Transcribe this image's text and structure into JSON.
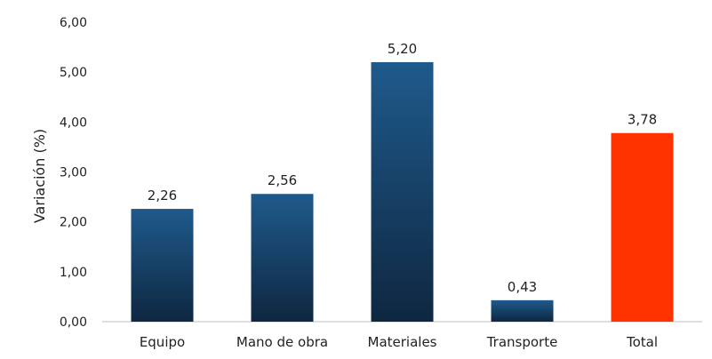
{
  "chart_data": {
    "type": "bar",
    "categories": [
      "Equipo",
      "Mano de obra",
      "Materiales",
      "Transporte",
      "Total"
    ],
    "values": [
      2.26,
      2.56,
      5.2,
      0.43,
      3.78
    ],
    "data_labels": [
      "2,26",
      "2,56",
      "5,20",
      "0,43",
      "3,78"
    ],
    "ylabel": "Variación (%)",
    "xlabel": "",
    "ylim": [
      0,
      6
    ],
    "yticks": [
      0,
      1,
      2,
      3,
      4,
      5,
      6
    ],
    "ytick_labels": [
      "0,00",
      "1,00",
      "2,00",
      "3,00",
      "4,00",
      "5,00",
      "6,00"
    ],
    "grid": false,
    "legend": "none",
    "colors": {
      "bar_gradient_top": "#1f5a8c",
      "bar_gradient_bottom": "#0e2740",
      "highlight": "#ff3300",
      "axis": "#bfbfbf"
    },
    "highlight_category": "Total"
  }
}
